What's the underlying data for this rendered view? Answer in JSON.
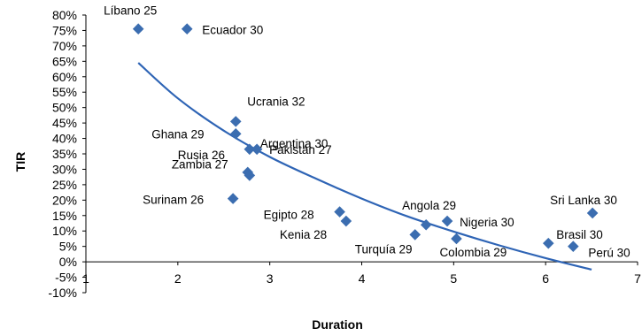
{
  "chart_data": {
    "type": "scatter",
    "title": "",
    "xlabel": "Duration",
    "ylabel": "TIR",
    "xlim": [
      1,
      7
    ],
    "ylim": [
      -10,
      80
    ],
    "y_unit": "%",
    "grid": false,
    "legend": "none",
    "marker": "diamond",
    "marker_color": "#3b6db0",
    "trendline_color": "#2e64b5",
    "x_ticks": [
      "1",
      "2",
      "3",
      "4",
      "5",
      "6",
      "7"
    ],
    "y_ticks": [
      "80%",
      "75%",
      "70%",
      "65%",
      "60%",
      "55%",
      "50%",
      "45%",
      "40%",
      "35%",
      "30%",
      "25%",
      "20%",
      "15%",
      "10%",
      "5%",
      "0%",
      "-5%",
      "-10%"
    ],
    "points": [
      {
        "label": "Líbano 25",
        "x": 1.57,
        "y": 75.5
      },
      {
        "label": "Ecuador 30",
        "x": 2.1,
        "y": 75.5
      },
      {
        "label": "Ucrania 32",
        "x": 2.63,
        "y": 45.5
      },
      {
        "label": "Ghana 29",
        "x": 2.63,
        "y": 41.5
      },
      {
        "label": "Argentina 30",
        "x": 2.78,
        "y": 36.5
      },
      {
        "label": "Pakistán 27",
        "x": 2.86,
        "y": 36.5
      },
      {
        "label": "Rusia 26",
        "x": 2.76,
        "y": 29.0
      },
      {
        "label": "Zambia 27",
        "x": 2.78,
        "y": 28.0
      },
      {
        "label": "Surinam 26",
        "x": 2.6,
        "y": 20.5
      },
      {
        "label": "Egipto 28",
        "x": 3.76,
        "y": 16.2
      },
      {
        "label": "Kenia 28",
        "x": 3.83,
        "y": 13.2
      },
      {
        "label": "Angola 29",
        "x": 4.7,
        "y": 12.0
      },
      {
        "label": "Nigeria 30",
        "x": 4.93,
        "y": 13.2
      },
      {
        "label": "Turquía 29",
        "x": 4.58,
        "y": 8.8
      },
      {
        "label": "Colombia 29",
        "x": 5.03,
        "y": 7.5
      },
      {
        "label": "Sri Lanka 30",
        "x": 6.51,
        "y": 15.8
      },
      {
        "label": "Brasil 30",
        "x": 6.03,
        "y": 6.0
      },
      {
        "label": "Perú 30",
        "x": 6.3,
        "y": 5.0
      }
    ],
    "trendline": {
      "type": "curve",
      "x": [
        1.57,
        2.0,
        2.5,
        3.0,
        3.5,
        4.0,
        4.5,
        5.0,
        5.5,
        6.0,
        6.5
      ],
      "y": [
        64.5,
        53.0,
        42.5,
        34.0,
        27.0,
        20.5,
        14.7,
        9.8,
        5.3,
        1.2,
        -2.5
      ]
    }
  }
}
